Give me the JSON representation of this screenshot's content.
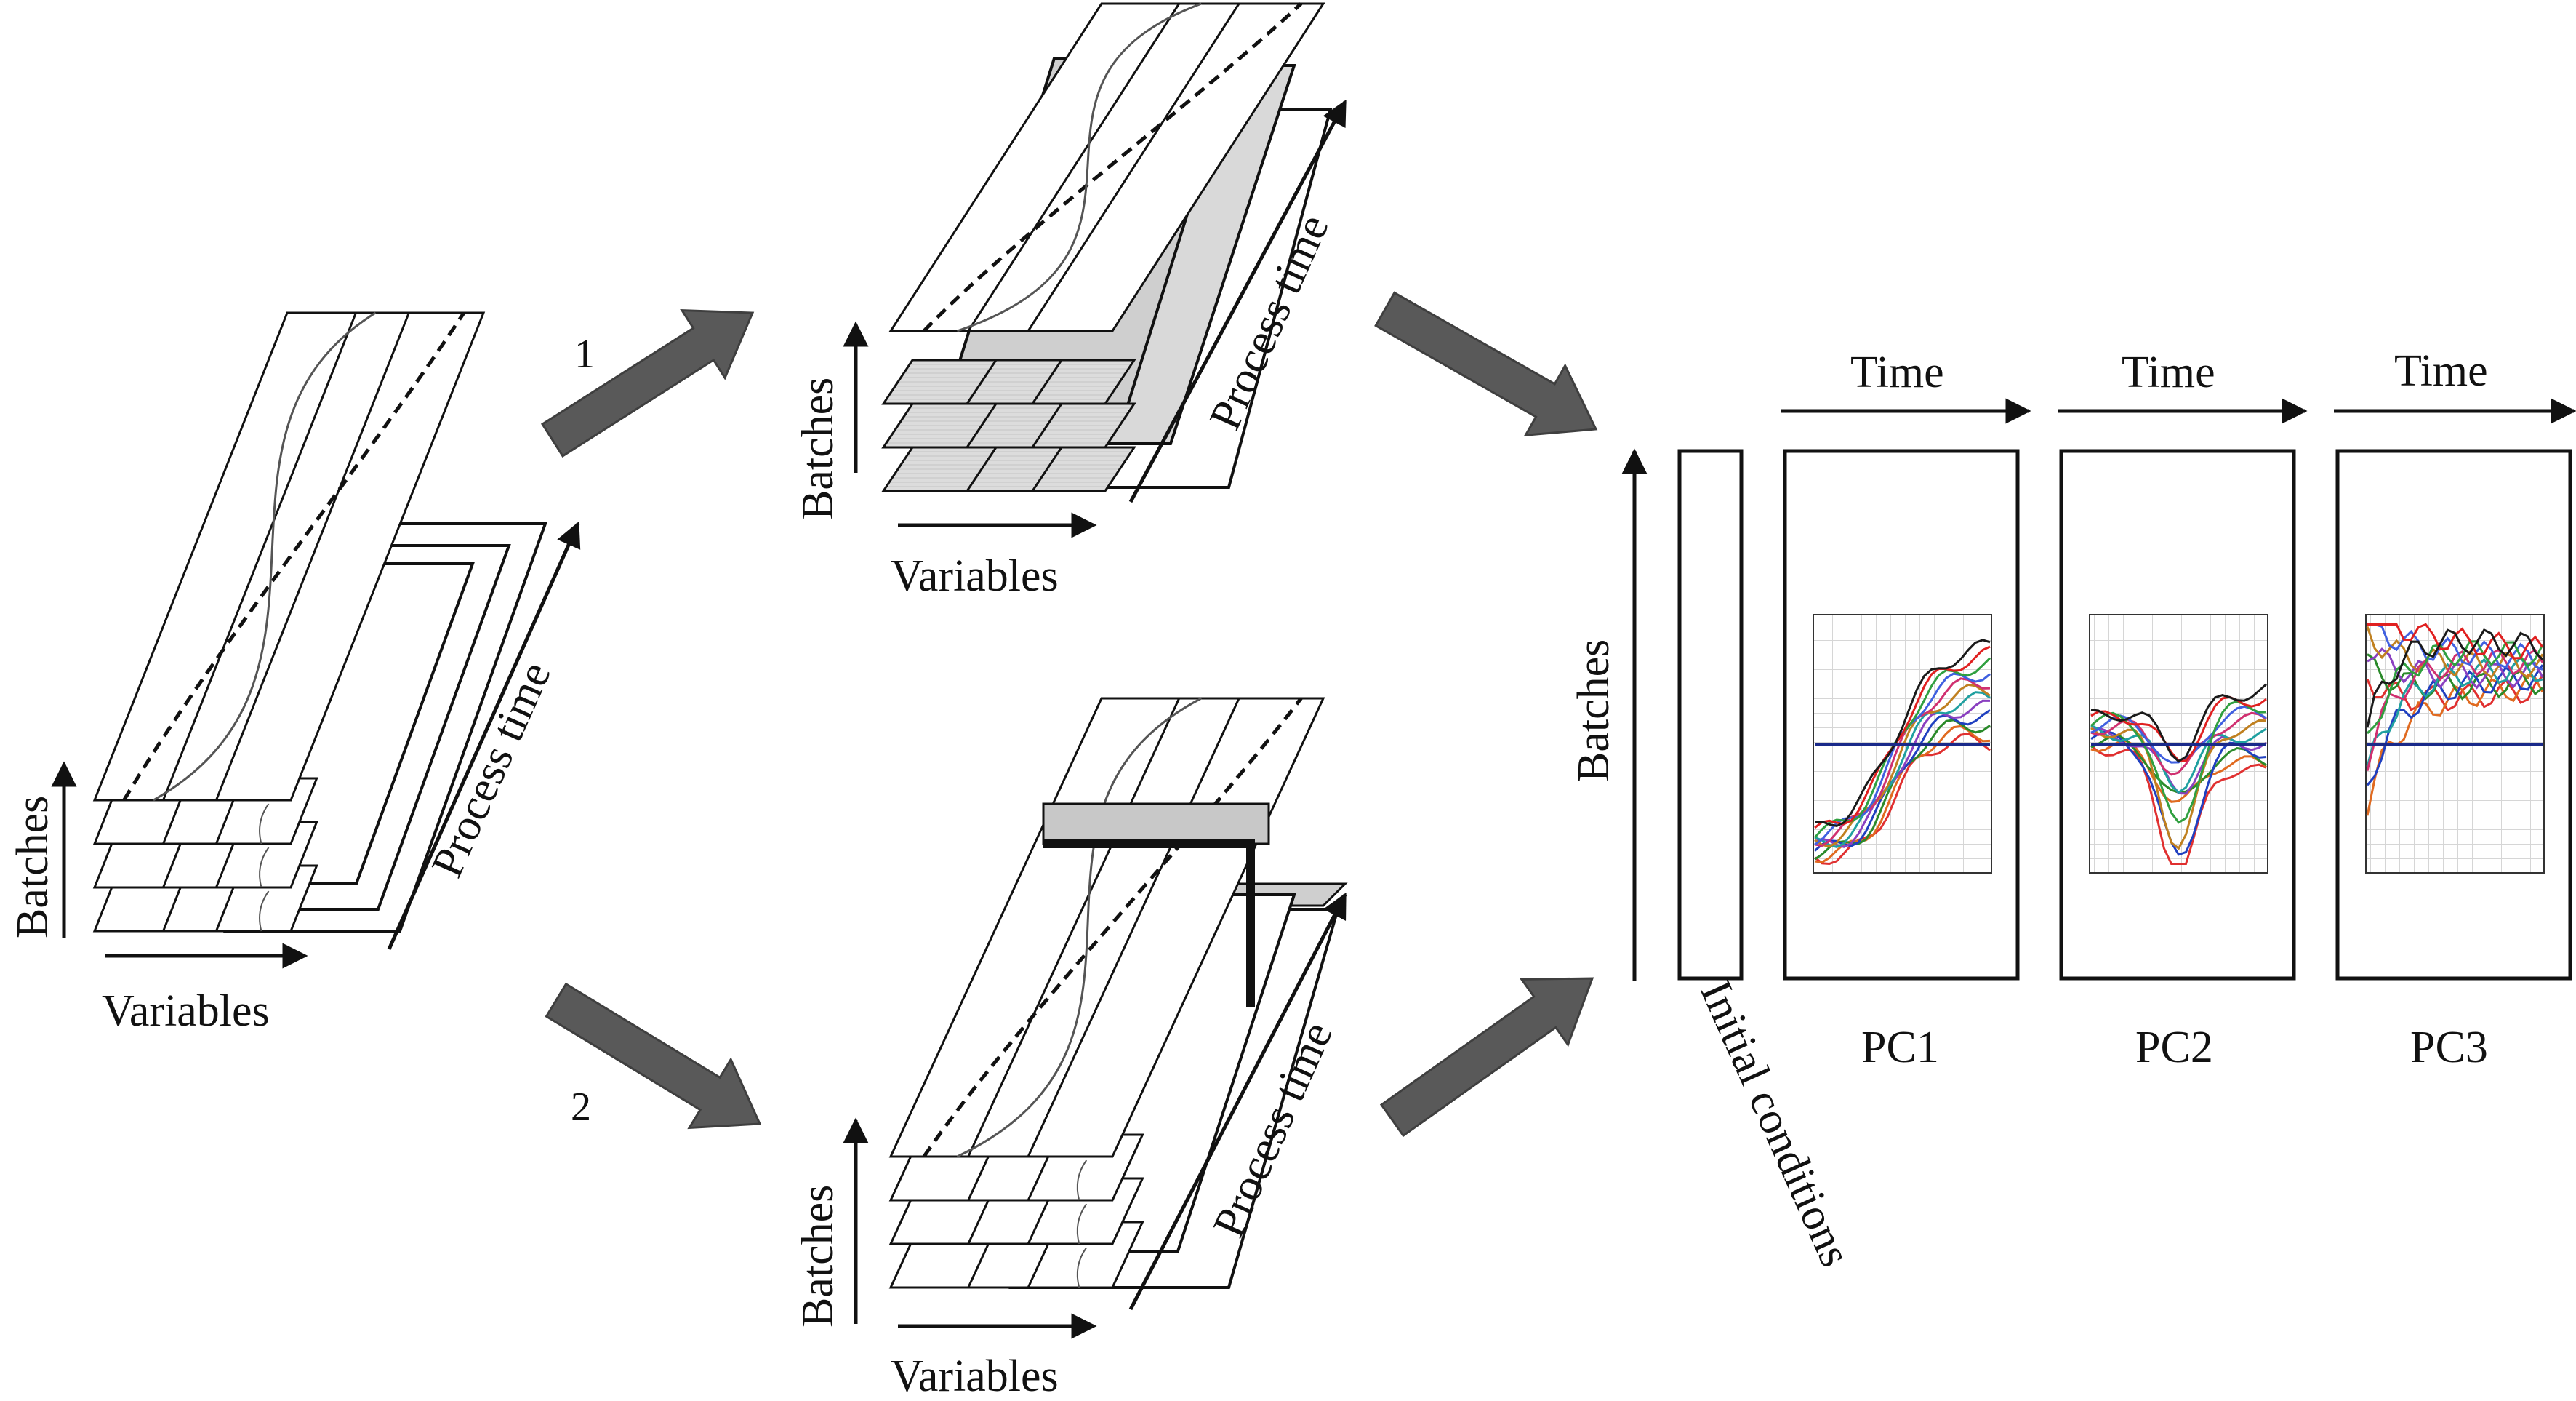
{
  "labels": {
    "batches": "Batches",
    "variables": "Variables",
    "process_time": "Process time",
    "path_1": "1",
    "path_2": "2",
    "time": "Time",
    "initial_conditions": "Initial conditions",
    "pc1": "PC1",
    "pc2": "PC2",
    "pc3": "PC3"
  },
  "colors": {
    "arrow": "#595959",
    "line": "#111111",
    "shade": "#d9d9d9"
  }
}
